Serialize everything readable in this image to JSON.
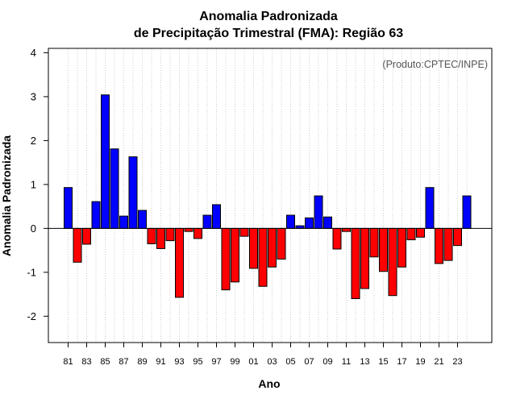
{
  "chart_data": {
    "type": "bar",
    "title": "Anomalia Padronizada",
    "subtitle": "de Precipitação Trimestral (FMA): Região 63",
    "xlabel": "Ano",
    "ylabel": "Anomalia Padronizada",
    "annotation": "(Produto:CPTEC/INPE)",
    "ylim": [
      -2.6,
      4.1
    ],
    "yticks": [
      -2,
      -1,
      0,
      1,
      2,
      3,
      4
    ],
    "grid": true,
    "colors": {
      "positive": "#0000ff",
      "negative": "#ff0000",
      "zero_line": "#000000",
      "grid": "#cccccc"
    },
    "x": [
      "81",
      "82",
      "83",
      "84",
      "85",
      "86",
      "87",
      "88",
      "89",
      "90",
      "91",
      "92",
      "93",
      "94",
      "95",
      "96",
      "97",
      "98",
      "99",
      "00",
      "01",
      "02",
      "03",
      "04",
      "05",
      "06",
      "07",
      "08",
      "09",
      "10",
      "11",
      "12",
      "13",
      "14",
      "15",
      "16",
      "17",
      "18",
      "19",
      "20",
      "21",
      "22",
      "23",
      "24"
    ],
    "xtick_labels": [
      "81",
      "83",
      "85",
      "87",
      "89",
      "91",
      "93",
      "95",
      "97",
      "99",
      "01",
      "03",
      "05",
      "07",
      "09",
      "11",
      "13",
      "15",
      "17",
      "19",
      "21",
      "23"
    ],
    "values": [
      0.93,
      -0.77,
      -0.36,
      0.61,
      3.04,
      1.81,
      0.28,
      1.63,
      0.41,
      -0.35,
      -0.46,
      -0.28,
      -1.57,
      -0.07,
      -0.23,
      0.3,
      0.54,
      -1.4,
      -1.22,
      -0.18,
      -0.91,
      -1.32,
      -0.88,
      -0.7,
      0.3,
      0.06,
      0.24,
      0.74,
      0.26,
      -0.47,
      -0.07,
      -1.6,
      -1.37,
      -0.65,
      -0.98,
      -1.53,
      -0.88,
      -0.26,
      -0.2,
      0.93,
      -0.8,
      -0.73,
      -0.39,
      0.74
    ]
  }
}
